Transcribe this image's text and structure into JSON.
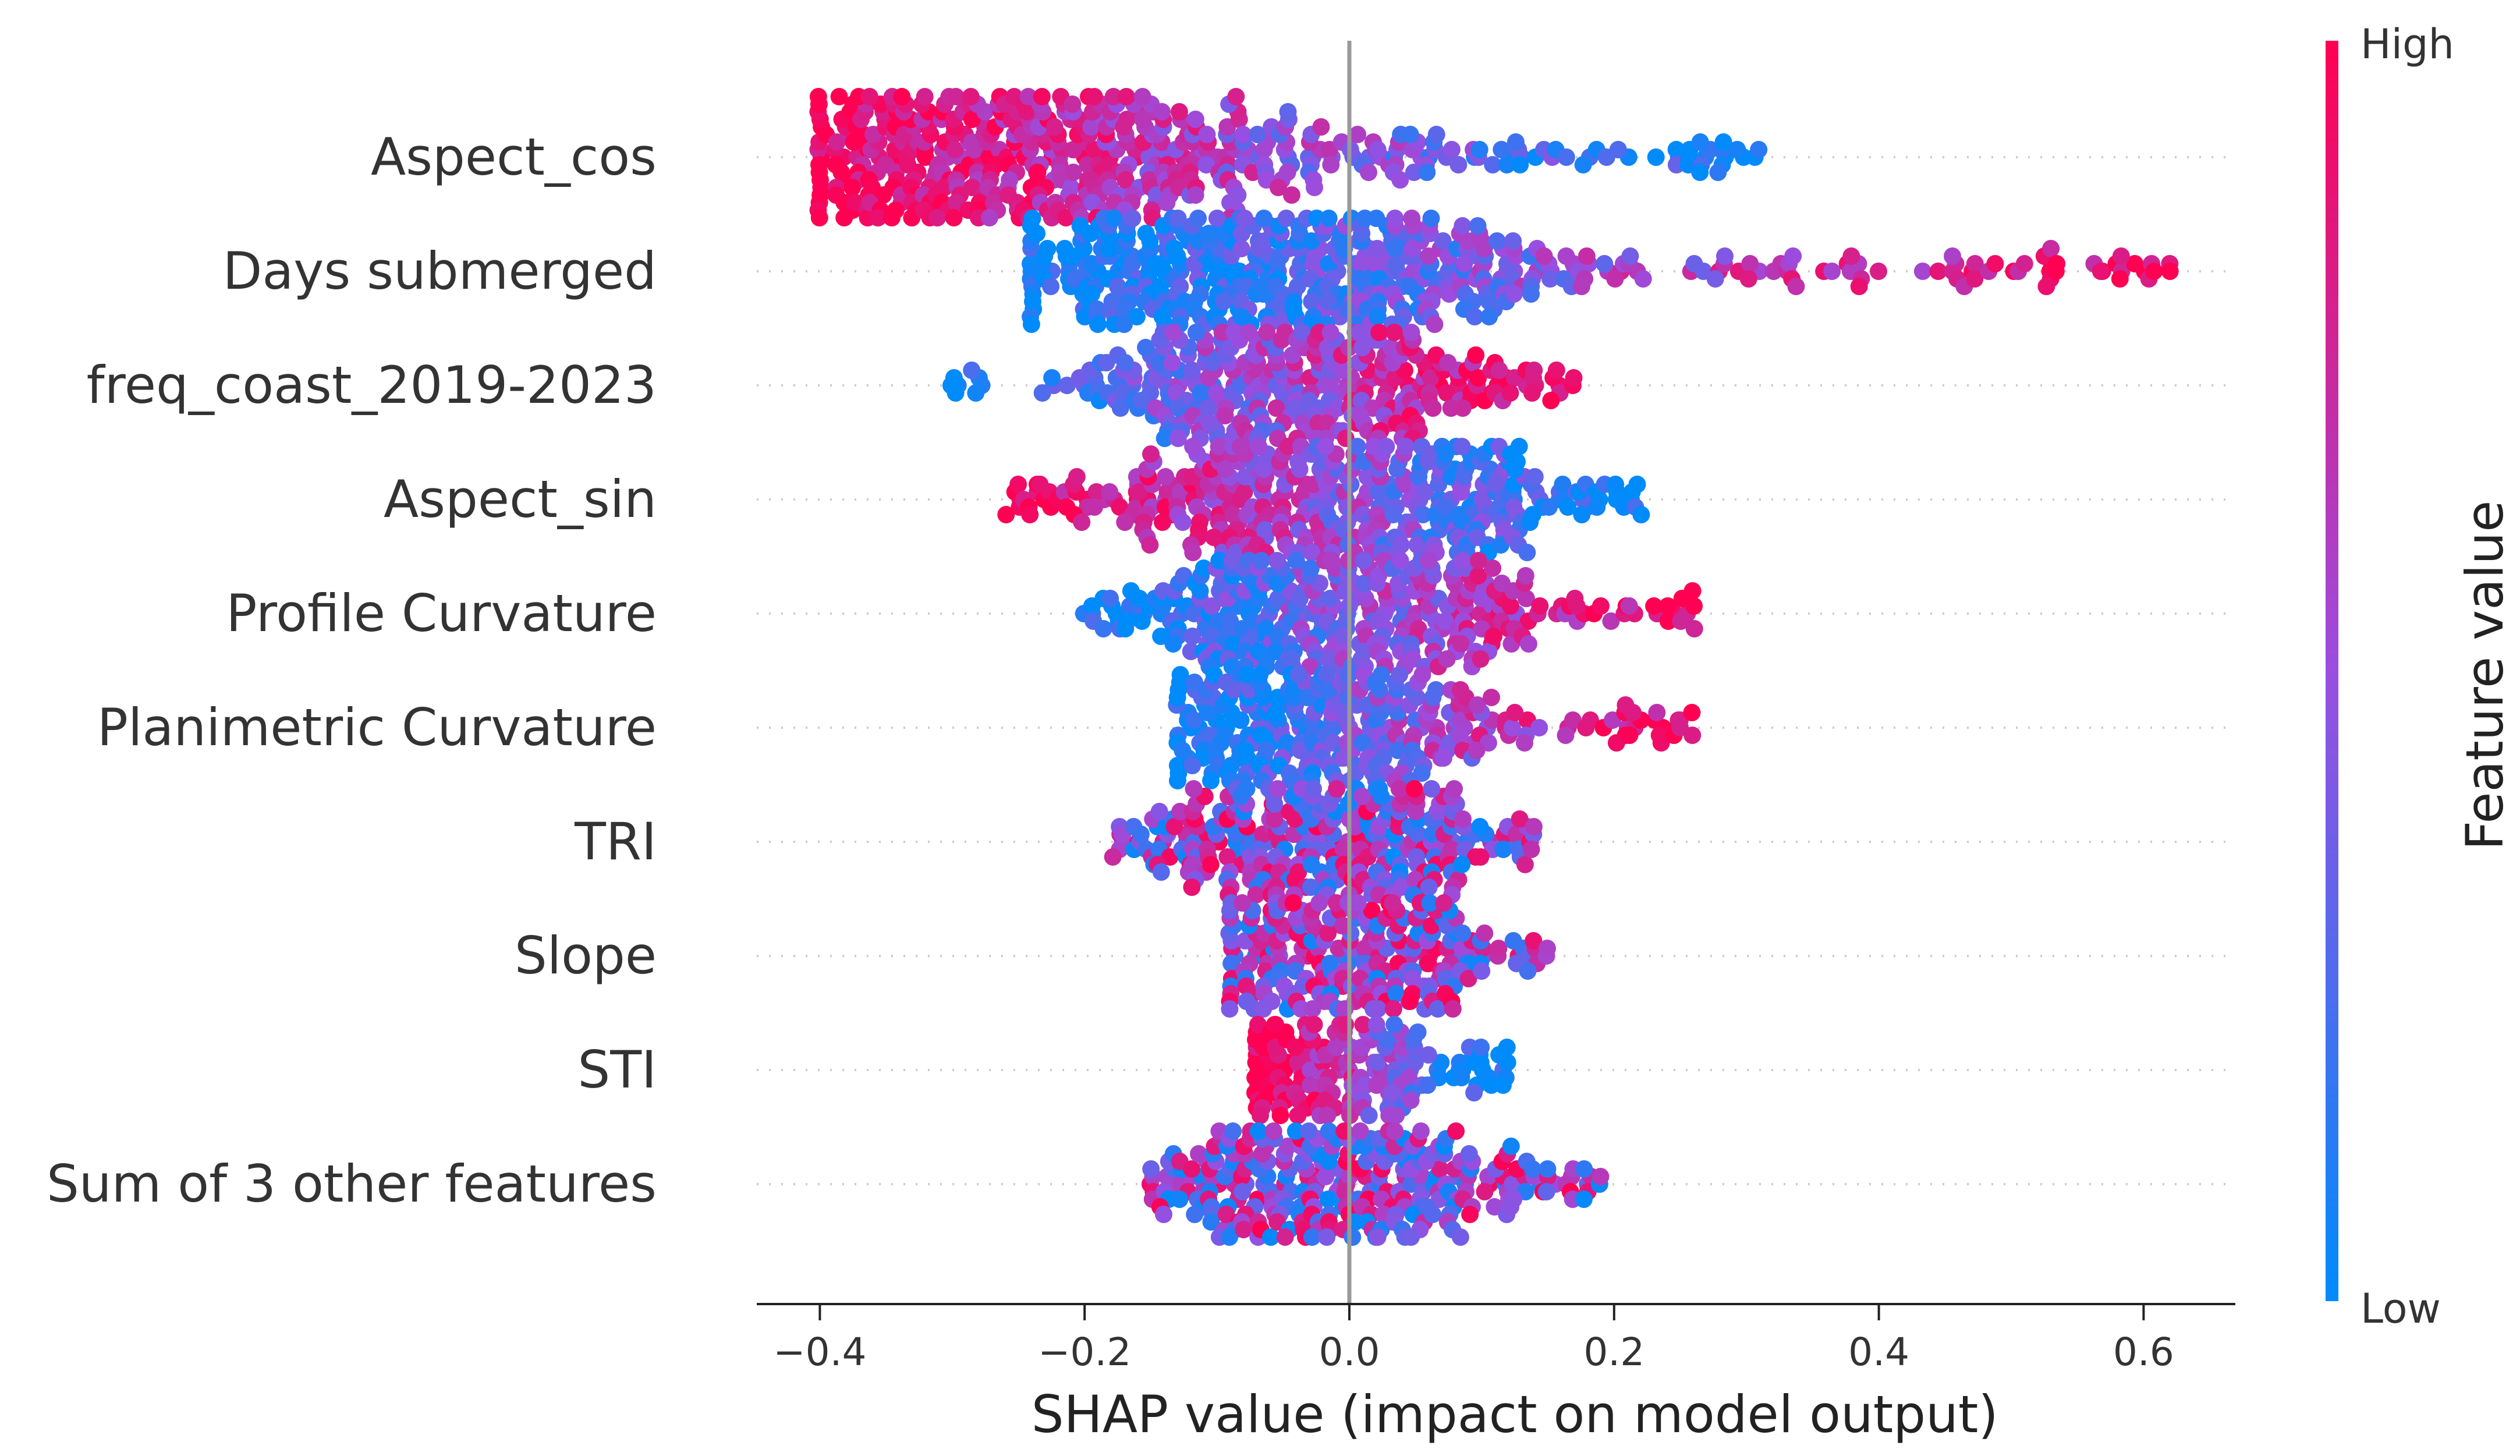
{
  "chart_data": {
    "type": "scatter",
    "subtype": "shap-beeswarm",
    "title": "",
    "xlabel": "SHAP value (impact on model output)",
    "ylabel": "",
    "xlim": [
      -0.45,
      0.67
    ],
    "xticks": [
      -0.4,
      -0.2,
      0.0,
      0.2,
      0.4,
      0.6
    ],
    "xtick_labels": [
      "−0.4",
      "−0.2",
      "0.0",
      "0.2",
      "0.4",
      "0.6"
    ],
    "features": [
      {
        "name": "Aspect_cos",
        "min": -0.4,
        "max": 0.31,
        "mode": -0.32,
        "spread": 0.13,
        "color_trend": "high-left",
        "max_stack": 8,
        "n_points": 900
      },
      {
        "name": "Days submerged",
        "min": -0.24,
        "max": 0.62,
        "mode": -0.05,
        "spread": 0.09,
        "color_trend": "high-right",
        "max_stack": 7,
        "n_points": 700
      },
      {
        "name": "freq_coast_2019-2023",
        "min": -0.3,
        "max": 0.17,
        "mode": -0.04,
        "spread": 0.06,
        "color_trend": "high-right",
        "max_stack": 7,
        "n_points": 600
      },
      {
        "name": "Aspect_sin",
        "min": -0.26,
        "max": 0.22,
        "mode": 0.0,
        "spread": 0.07,
        "color_trend": "high-left",
        "max_stack": 7,
        "n_points": 650
      },
      {
        "name": "Profile Curvature",
        "min": -0.2,
        "max": 0.26,
        "mode": -0.01,
        "spread": 0.06,
        "color_trend": "high-right",
        "max_stack": 7,
        "n_points": 600
      },
      {
        "name": "Planimetric Curvature",
        "min": -0.13,
        "max": 0.26,
        "mode": -0.02,
        "spread": 0.05,
        "color_trend": "high-right",
        "max_stack": 7,
        "n_points": 600
      },
      {
        "name": "TRI",
        "min": -0.18,
        "max": 0.14,
        "mode": -0.01,
        "spread": 0.05,
        "color_trend": "mixed",
        "max_stack": 7,
        "n_points": 550
      },
      {
        "name": "Slope",
        "min": -0.09,
        "max": 0.15,
        "mode": -0.01,
        "spread": 0.04,
        "color_trend": "mixed",
        "max_stack": 7,
        "n_points": 550
      },
      {
        "name": "STI",
        "min": -0.07,
        "max": 0.12,
        "mode": -0.01,
        "spread": 0.03,
        "color_trend": "high-left",
        "max_stack": 6,
        "n_points": 450
      },
      {
        "name": "Sum of 3 other features",
        "min": -0.15,
        "max": 0.19,
        "mode": -0.02,
        "spread": 0.05,
        "color_trend": "mixed",
        "max_stack": 7,
        "n_points": 600
      }
    ],
    "colorbar": {
      "label": "Feature value",
      "high_label": "High",
      "low_label": "Low",
      "high_color": "#ff0052",
      "low_color": "#008bfb"
    }
  }
}
